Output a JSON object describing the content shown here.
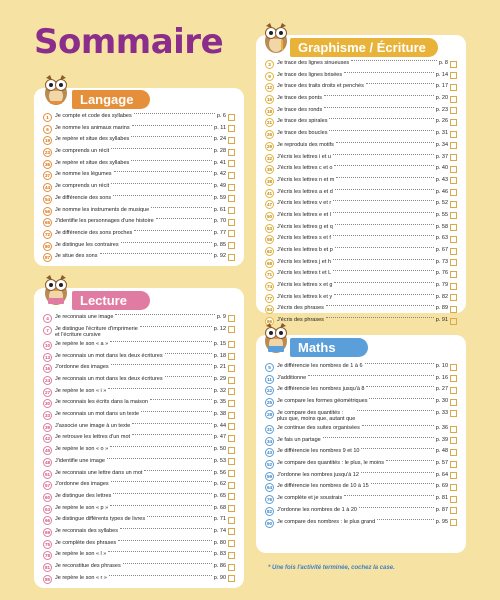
{
  "title": "Sommaire",
  "colors": {
    "background": "#f6e3a3",
    "title": "#8b2d8a",
    "langage": "#e58f3a",
    "lecture": "#e07ca1",
    "maths": "#5a9fd9",
    "graphisme": "#e8b338"
  },
  "icons": {
    "owl": "owl-icon",
    "checkbox": "checkbox-icon"
  },
  "langage": {
    "title": "Langage",
    "items": [
      {
        "n": "1",
        "text": "Je compte et code des syllabes",
        "page": "p. 6"
      },
      {
        "n": "6",
        "text": "Je nomme les animaux marins",
        "page": "p. 11"
      },
      {
        "n": "19",
        "text": "Je repère et situe des syllabes",
        "page": "p. 24"
      },
      {
        "n": "23",
        "text": "Je comprends un récit",
        "page": "p. 28"
      },
      {
        "n": "36",
        "text": "Je repère et situe des syllabes",
        "page": "p. 41"
      },
      {
        "n": "37",
        "text": "Je nomme les légumes",
        "page": "p. 42"
      },
      {
        "n": "44",
        "text": "Je comprends un récit",
        "page": "p. 49"
      },
      {
        "n": "54",
        "text": "Je différencie des sons",
        "page": "p. 59"
      },
      {
        "n": "56",
        "text": "Je nomme les instruments de musique",
        "page": "p. 61"
      },
      {
        "n": "65",
        "text": "J'identifie les personnages d'une histoire",
        "page": "p. 70"
      },
      {
        "n": "72",
        "text": "Je différencie des sons proches",
        "page": "p. 77"
      },
      {
        "n": "80",
        "text": "Je distingue les contraires",
        "page": "p. 85"
      },
      {
        "n": "87",
        "text": "Je situe des sons",
        "page": "p. 92"
      }
    ]
  },
  "lecture": {
    "title": "Lecture",
    "items": [
      {
        "n": "4",
        "text": "Je reconnais une image",
        "page": "p. 9"
      },
      {
        "n": "7",
        "text": "Je distingue l'écriture d'imprimerie\net l'écriture cursive",
        "page": "p. 12"
      },
      {
        "n": "10",
        "text": "Je repère le son « a »",
        "page": "p. 15"
      },
      {
        "n": "13",
        "text": "Je reconnais un mot dans les deux écritures",
        "page": "p. 18"
      },
      {
        "n": "16",
        "text": "J'ordonne des images",
        "page": "p. 21"
      },
      {
        "n": "24",
        "text": "Je reconnais un mot dans les deux écritures",
        "page": "p. 29"
      },
      {
        "n": "27",
        "text": "Je repère le son « i »",
        "page": "p. 32"
      },
      {
        "n": "30",
        "text": "Je reconnais les écrits dans la maison",
        "page": "p. 35"
      },
      {
        "n": "33",
        "text": "Je reconnais un mot dans un texte",
        "page": "p. 38"
      },
      {
        "n": "39",
        "text": "J'associe une image à un texte",
        "page": "p. 44"
      },
      {
        "n": "42",
        "text": "Je retrouve les lettres d'un mot",
        "page": "p. 47"
      },
      {
        "n": "45",
        "text": "Je repère le son « o »",
        "page": "p. 50"
      },
      {
        "n": "48",
        "text": "J'identifie une image",
        "page": "p. 53"
      },
      {
        "n": "51",
        "text": "Je reconnais une lettre dans un mot",
        "page": "p. 56"
      },
      {
        "n": "57",
        "text": "J'ordonne des images",
        "page": "p. 62"
      },
      {
        "n": "60",
        "text": "Je distingue des lettres",
        "page": "p. 65"
      },
      {
        "n": "63",
        "text": "Je repère le son « p »",
        "page": "p. 68"
      },
      {
        "n": "66",
        "text": "Je distingue différents types de livres",
        "page": "p. 71"
      },
      {
        "n": "69",
        "text": "Je reconnais des syllabes",
        "page": "p. 74"
      },
      {
        "n": "75",
        "text": "Je complète des phrases",
        "page": "p. 80"
      },
      {
        "n": "78",
        "text": "Je repère le son « l »",
        "page": "p. 83"
      },
      {
        "n": "81",
        "text": "Je reconstitue des phrases",
        "page": "p. 86"
      },
      {
        "n": "85",
        "text": "Je repère le son « r »",
        "page": "p. 90"
      }
    ]
  },
  "graphisme": {
    "title": "Graphisme / Écriture",
    "items": [
      {
        "n": "3",
        "text": "Je trace des lignes sinueuses",
        "page": "p. 8"
      },
      {
        "n": "9",
        "text": "Je trace des lignes brisées",
        "page": "p. 14"
      },
      {
        "n": "12",
        "text": "Je trace des traits droits et penchés",
        "page": "p. 17"
      },
      {
        "n": "15",
        "text": "Je trace des ponts",
        "page": "p. 20"
      },
      {
        "n": "18",
        "text": "Je trace des ronds",
        "page": "p. 23"
      },
      {
        "n": "21",
        "text": "Je trace des spirales",
        "page": "p. 26"
      },
      {
        "n": "26",
        "text": "Je trace des boucles",
        "page": "p. 31"
      },
      {
        "n": "29",
        "text": "Je reproduis des motifs",
        "page": "p. 34"
      },
      {
        "n": "32",
        "text": "J'écris les lettres i et u",
        "page": "p. 37"
      },
      {
        "n": "35",
        "text": "J'écris les lettres c et o",
        "page": "p. 40"
      },
      {
        "n": "38",
        "text": "J'écris les lettres n et m",
        "page": "p. 43"
      },
      {
        "n": "41",
        "text": "J'écris les lettres a et d",
        "page": "p. 46"
      },
      {
        "n": "47",
        "text": "J'écris les lettres v et r",
        "page": "p. 52"
      },
      {
        "n": "50",
        "text": "J'écris les lettres e et l",
        "page": "p. 55"
      },
      {
        "n": "53",
        "text": "J'écris les lettres g et q",
        "page": "p. 58"
      },
      {
        "n": "58",
        "text": "J'écris les lettres s et f",
        "page": "p. 63"
      },
      {
        "n": "62",
        "text": "J'écris les lettres b et p",
        "page": "p. 67"
      },
      {
        "n": "68",
        "text": "J'écris les lettres j et h",
        "page": "p. 73"
      },
      {
        "n": "71",
        "text": "J'écris les lettres t et L",
        "page": "p. 76"
      },
      {
        "n": "74",
        "text": "J'écris les lettres x et g",
        "page": "p. 79"
      },
      {
        "n": "77",
        "text": "J'écris les lettres k et y",
        "page": "p. 82"
      },
      {
        "n": "84",
        "text": "J'écris des phrases",
        "page": "p. 89"
      },
      {
        "n": "86",
        "text": "J'écris des phrases",
        "page": "p. 91"
      }
    ]
  },
  "maths": {
    "title": "Maths",
    "items": [
      {
        "n": "5",
        "text": "Je différencie les nombres de 1 à 6",
        "page": "p. 10"
      },
      {
        "n": "11",
        "text": "J'additionne",
        "page": "p. 16"
      },
      {
        "n": "22",
        "text": "Je différencie les nombres jusqu'à 8",
        "page": "p. 27"
      },
      {
        "n": "25",
        "text": "Je compare les formes géométriques",
        "page": "p. 30"
      },
      {
        "n": "28",
        "text": "Je compare des quantités :\nplus que, moins que, autant que",
        "page": "p. 33"
      },
      {
        "n": "31",
        "text": "Je continue des suites organisées",
        "page": "p. 36"
      },
      {
        "n": "34",
        "text": "Je fais un partage",
        "page": "p. 39"
      },
      {
        "n": "43",
        "text": "Je différencie les nombres 9 et 10",
        "page": "p. 48"
      },
      {
        "n": "52",
        "text": "Je compare des quantités : le plus, le moins",
        "page": "p. 57"
      },
      {
        "n": "59",
        "text": "J'ordonne les nombres jusqu'à 12",
        "page": "p. 64"
      },
      {
        "n": "64",
        "text": "Je différencie les nombres de 10 à 15",
        "page": "p. 69"
      },
      {
        "n": "76",
        "text": "Je complète et je soustrais",
        "page": "p. 81"
      },
      {
        "n": "82",
        "text": "J'ordonne les nombres de 1 à 20",
        "page": "p. 87"
      },
      {
        "n": "90",
        "text": "Je compare des nombres : le plus grand",
        "page": "p. 95"
      }
    ]
  },
  "footnote": "* Une fois l'activité terminée, cochez la case."
}
